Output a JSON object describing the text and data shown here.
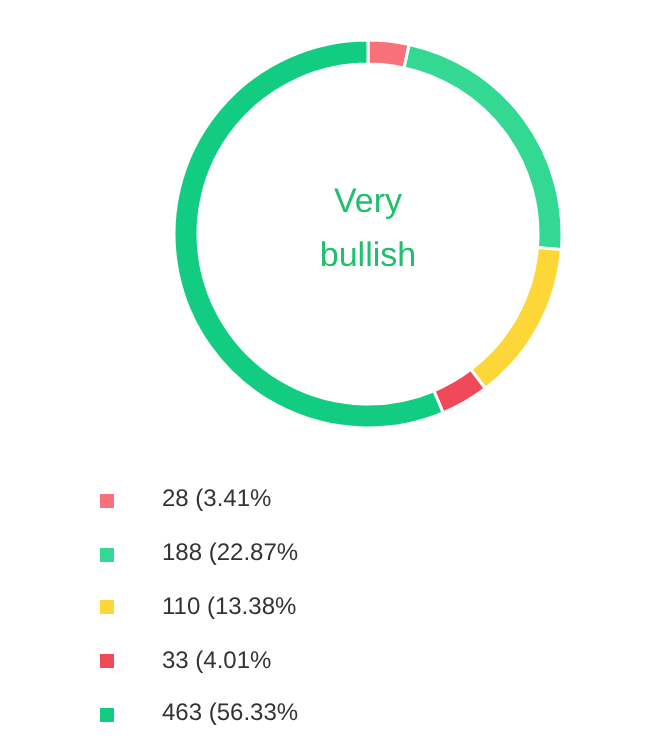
{
  "chart_data": {
    "type": "donut",
    "categories": [
      "28 (3.41%",
      "188 (22.87%",
      "110 (13.38%",
      "33 (4.01%",
      "463 (56.33%"
    ],
    "values": [
      28,
      188,
      110,
      33,
      463
    ],
    "colors": [
      "#f7707a",
      "#33d993",
      "#fdd638",
      "#f04a5a",
      "#12cc82"
    ],
    "annotations": [
      "Very bullish"
    ],
    "legend": "bottom"
  }
}
